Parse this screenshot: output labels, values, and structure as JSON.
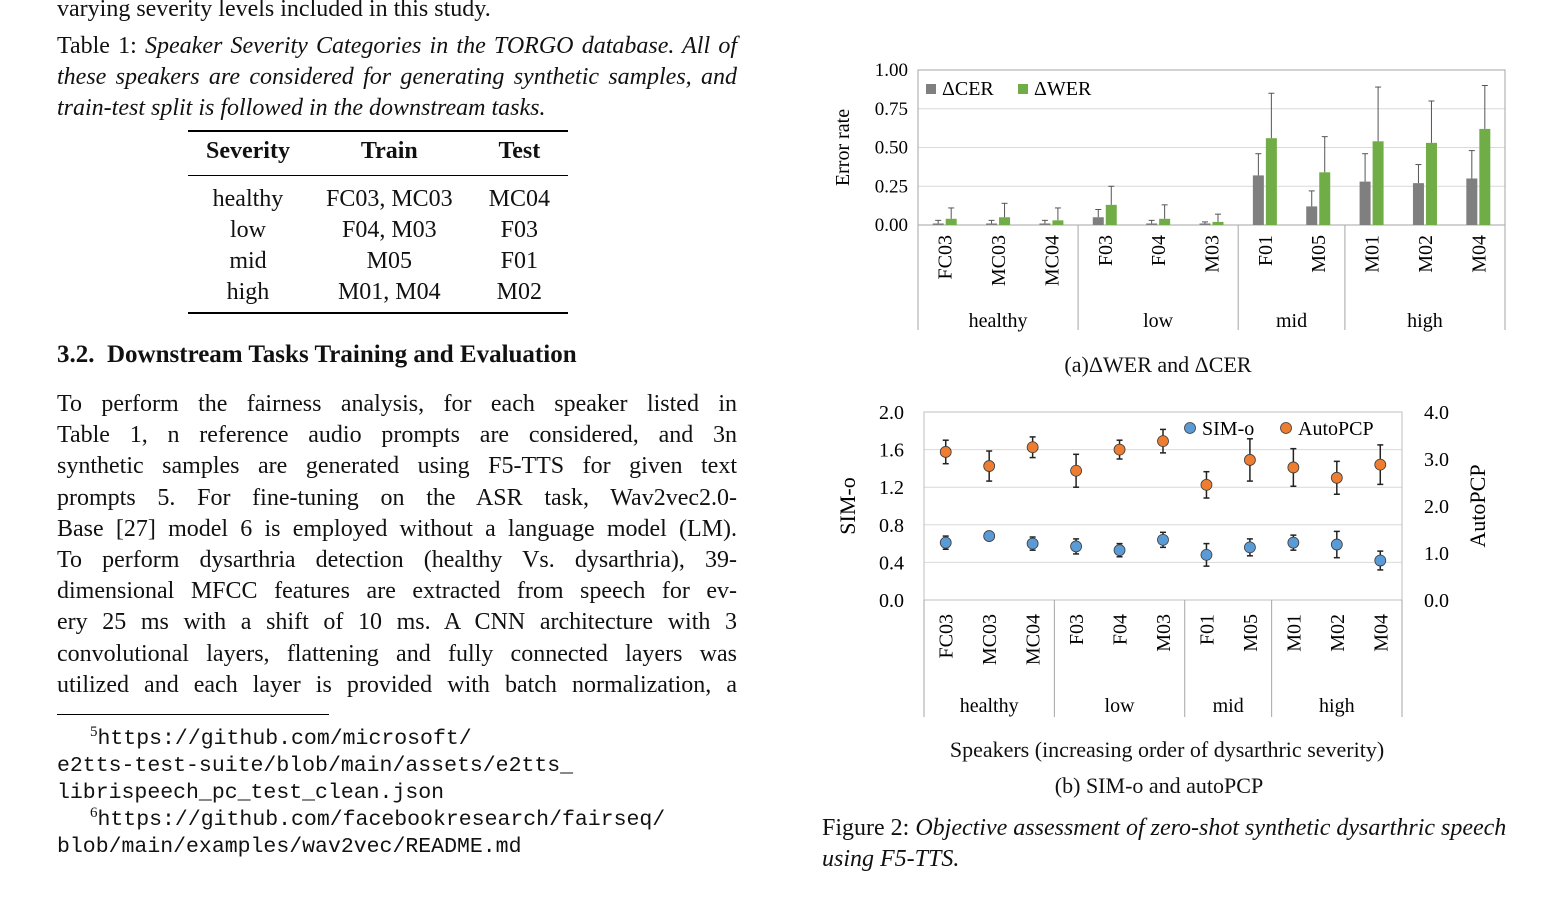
{
  "left": {
    "top_line": "varying severity levels included in this study.",
    "table_caption": {
      "label": "Table 1:",
      "text": "Speaker Severity Categories in the TORGO database. All of these speakers are considered for generating synthetic samples, and train-test split is followed in the downstream tasks."
    },
    "table": {
      "headers": [
        "Severity",
        "Train",
        "Test"
      ],
      "rows": [
        [
          "healthy",
          "FC03, MC03",
          "MC04"
        ],
        [
          "low",
          "F04, M03",
          "F03"
        ],
        [
          "mid",
          "M05",
          "F01"
        ],
        [
          "high",
          "M01, M04",
          "M02"
        ]
      ]
    },
    "section_heading": "3.2.  Downstream Tasks Training and Evaluation",
    "paragraph_lines": [
      "To perform the fairness analysis, for each speaker listed in",
      "Table 1, n reference audio prompts are considered, and 3n",
      "synthetic samples are generated using F5-TTS for given text",
      "prompts 5.  For fine-tuning on the ASR task, Wav2vec2.0-",
      "Base [27] model 6 is employed without a language model (LM).",
      "To perform dysarthria detection (healthy Vs.  dysarthria), 39-",
      "dimensional MFCC features are extracted from speech for ev-",
      "ery 25 ms with a shift of 10 ms.  A CNN architecture with 3",
      "convolutional layers, flattening and fully connected layers was",
      "utilized and each layer is provided with batch normalization, a"
    ],
    "footnotes": [
      {
        "mark": "5",
        "lines": [
          "https://github.com/microsoft/",
          "e2tts-test-suite/blob/main/assets/e2tts_",
          "librispeech_pc_test_clean.json"
        ]
      },
      {
        "mark": "6",
        "lines": [
          "https://github.com/facebookresearch/fairseq/",
          "blob/main/examples/wav2vec/README.md"
        ]
      }
    ]
  },
  "figure": {
    "caption_label": "Figure 2:",
    "caption_text": "Objective assessment of zero-shot synthetic dysarthric speech using F5-TTS.",
    "subcaption_a": "(a)ΔWER and ΔCER",
    "subcaption_b": "(b) SIM-o and autoPCP",
    "xlabel_b": "Speakers (increasing order of dysarthric severity)"
  },
  "chart_data": [
    {
      "type": "bar",
      "title": "",
      "ylabel": "Error rate",
      "ylim": [
        0,
        1.0
      ],
      "yticks": [
        "0.00",
        "0.25",
        "0.50",
        "0.75",
        "1.00"
      ],
      "legend_position": "top-left",
      "grid": true,
      "categories": [
        "FC03",
        "MC03",
        "MC04",
        "F03",
        "F04",
        "M03",
        "F01",
        "M05",
        "M01",
        "M02",
        "M04"
      ],
      "groups": [
        {
          "label": "healthy",
          "count": 3
        },
        {
          "label": "low",
          "count": 3
        },
        {
          "label": "mid",
          "count": 2
        },
        {
          "label": "high",
          "count": 3
        }
      ],
      "series": [
        {
          "name": "ΔCER",
          "color": "#7f7f7f",
          "values": [
            0.01,
            0.01,
            0.01,
            0.05,
            0.01,
            0.01,
            0.32,
            0.12,
            0.28,
            0.27,
            0.3
          ],
          "errors": [
            0.02,
            0.02,
            0.02,
            0.05,
            0.02,
            0.01,
            0.14,
            0.1,
            0.18,
            0.12,
            0.18
          ]
        },
        {
          "name": "ΔWER",
          "color": "#70ad47",
          "values": [
            0.04,
            0.05,
            0.03,
            0.13,
            0.04,
            0.02,
            0.56,
            0.34,
            0.54,
            0.53,
            0.62
          ],
          "errors": [
            0.07,
            0.09,
            0.08,
            0.12,
            0.09,
            0.05,
            0.29,
            0.23,
            0.35,
            0.27,
            0.28
          ]
        }
      ]
    },
    {
      "type": "scatter",
      "title": "",
      "ylabel": "SIM-o",
      "y2label": "AutoPCP",
      "ylim": [
        0,
        2.0
      ],
      "y2lim": [
        0,
        4.0
      ],
      "yticks": [
        "0.0",
        "0.4",
        "0.8",
        "1.2",
        "1.6",
        "2.0"
      ],
      "y2ticks": [
        "0.0",
        "1.0",
        "2.0",
        "3.0",
        "4.0"
      ],
      "legend_position": "top-right",
      "grid": true,
      "categories": [
        "FC03",
        "MC03",
        "MC04",
        "F03",
        "F04",
        "M03",
        "F01",
        "M05",
        "M01",
        "M02",
        "M04"
      ],
      "groups": [
        {
          "label": "healthy",
          "count": 3
        },
        {
          "label": "low",
          "count": 3
        },
        {
          "label": "mid",
          "count": 2
        },
        {
          "label": "high",
          "count": 3
        }
      ],
      "series": [
        {
          "name": "SIM-o",
          "axis": "left",
          "color": "#5b9bd5",
          "values": [
            0.61,
            0.68,
            0.6,
            0.57,
            0.53,
            0.64,
            0.48,
            0.56,
            0.61,
            0.59,
            0.42
          ],
          "errors": [
            0.07,
            0.03,
            0.07,
            0.08,
            0.07,
            0.08,
            0.12,
            0.09,
            0.08,
            0.14,
            0.1
          ]
        },
        {
          "name": "AutoPCP",
          "axis": "right",
          "color": "#ed7d31",
          "values": [
            3.15,
            2.85,
            3.25,
            2.75,
            3.2,
            3.38,
            2.45,
            2.98,
            2.82,
            2.6,
            2.88
          ],
          "errors": [
            0.25,
            0.32,
            0.22,
            0.35,
            0.2,
            0.25,
            0.28,
            0.45,
            0.4,
            0.35,
            0.42
          ]
        }
      ]
    }
  ]
}
